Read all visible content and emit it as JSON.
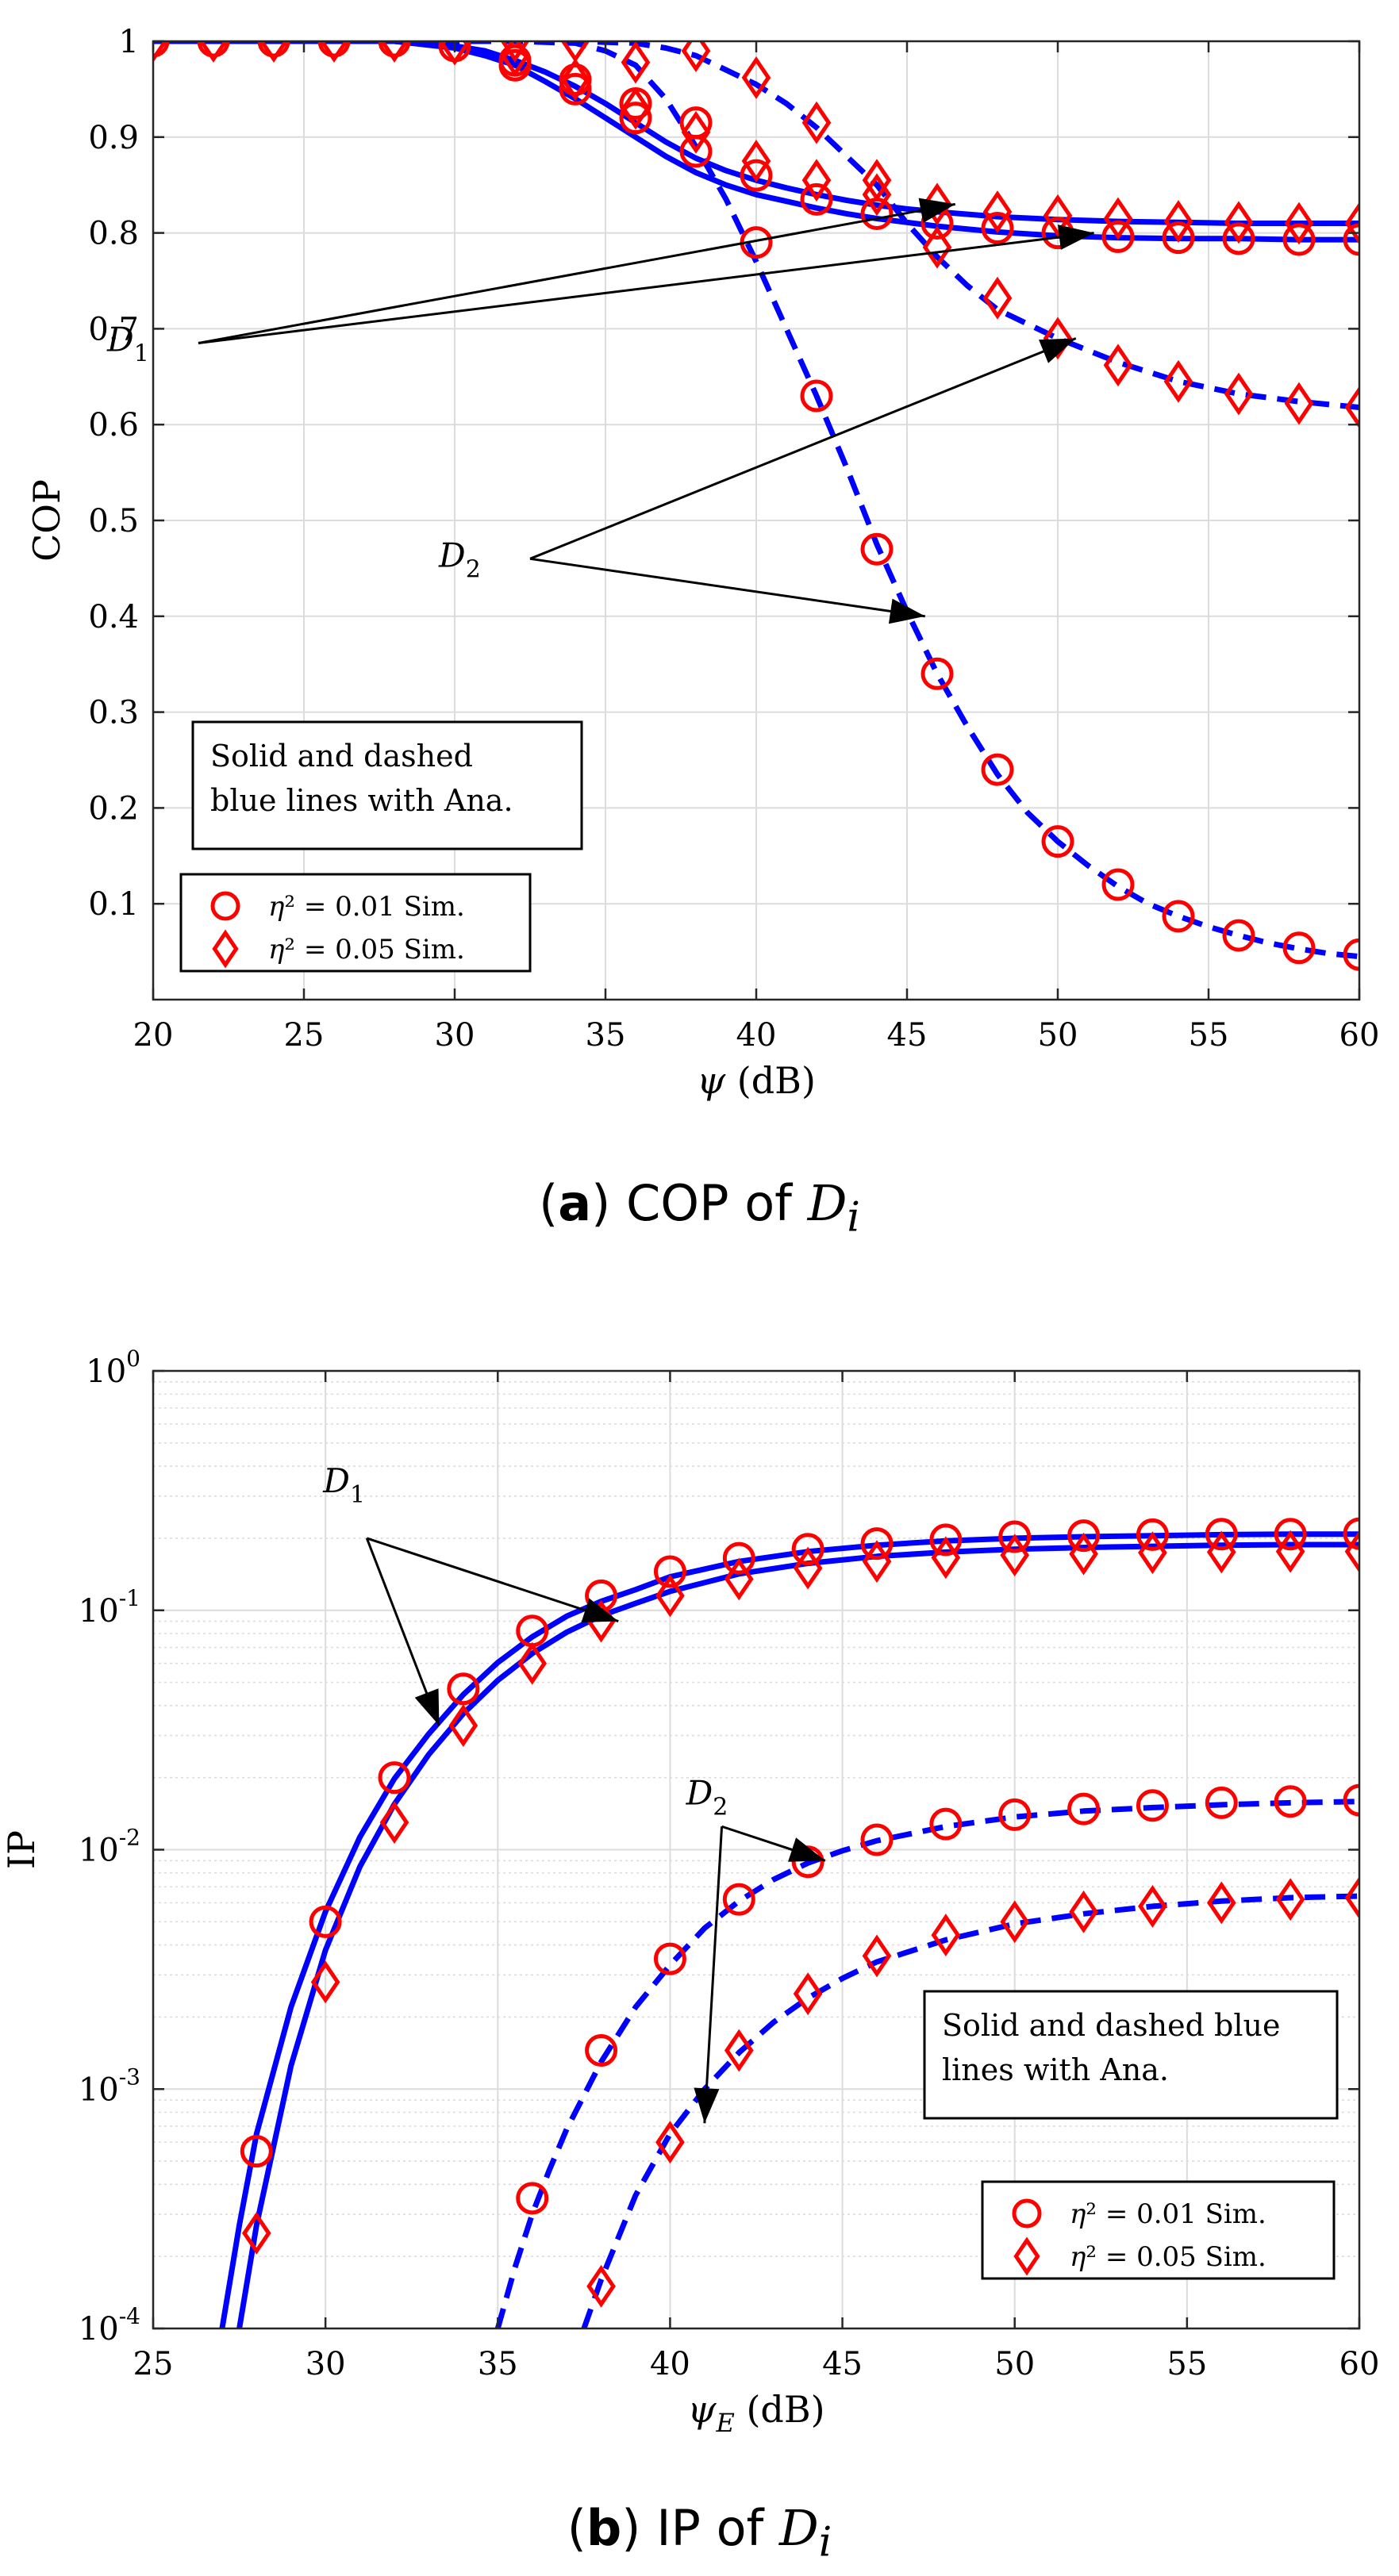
{
  "chart_data": [
    {
      "type": "line",
      "panel": "(a)",
      "caption": {
        "label": "a",
        "text": "COP of",
        "var": "D",
        "sub": "i"
      },
      "xlabel": "ψ (dB)",
      "ylabel": "COP",
      "xlim": [
        20,
        60
      ],
      "ylim": [
        0,
        1
      ],
      "yscale": "linear",
      "xticks": [
        20,
        25,
        30,
        35,
        40,
        45,
        50,
        55,
        60
      ],
      "yticks": [
        0.1,
        0.2,
        0.3,
        0.4,
        0.5,
        0.6,
        0.7,
        0.8,
        0.9,
        1
      ],
      "ytick_labels": [
        "0.1",
        "0.2",
        "0.3",
        "0.4",
        "0.5",
        "0.6",
        "0.7",
        "0.8",
        "0.9",
        "1"
      ],
      "grid": true,
      "legend_position": "bottom-left",
      "legend": [
        {
          "label": "η² = 0.01 Sim.",
          "marker": "circle",
          "color": "#ff0000"
        },
        {
          "label": "η² = 0.05 Sim.",
          "marker": "diamond",
          "color": "#ff0000"
        }
      ],
      "note_lines": [
        "Solid and dashed",
        "blue lines with Ana."
      ],
      "annotations": [
        {
          "label": "D",
          "sub": "1",
          "at": [
            21.5,
            0.685
          ],
          "targets": [
            [
              46.6,
              0.83
            ],
            [
              51.2,
              0.8
            ]
          ]
        },
        {
          "label": "D",
          "sub": "2",
          "at": [
            32.5,
            0.46
          ],
          "targets": [
            [
              50.6,
              0.69
            ],
            [
              45.6,
              0.4
            ]
          ]
        }
      ],
      "series": [
        {
          "name": "D1 η²=0.01 Ana.",
          "style": "solid",
          "color": "#0000ff",
          "x": [
            20,
            22,
            24,
            26,
            28,
            30,
            31,
            32,
            33,
            34,
            35,
            36,
            37,
            38,
            39,
            40,
            41,
            42,
            43,
            44,
            45,
            46,
            48,
            50,
            52,
            54,
            56,
            58,
            60
          ],
          "y": [
            1,
            1,
            1,
            1,
            1,
            0.993,
            0.985,
            0.975,
            0.958,
            0.94,
            0.92,
            0.9,
            0.88,
            0.863,
            0.85,
            0.84,
            0.833,
            0.826,
            0.82,
            0.815,
            0.811,
            0.807,
            0.801,
            0.797,
            0.795,
            0.794,
            0.794,
            0.793,
            0.793
          ]
        },
        {
          "name": "D1 η²=0.05 Ana.",
          "style": "solid",
          "color": "#0000ff",
          "x": [
            20,
            22,
            24,
            26,
            28,
            30,
            31,
            32,
            33,
            34,
            35,
            36,
            37,
            38,
            39,
            40,
            41,
            42,
            43,
            44,
            45,
            46,
            48,
            50,
            52,
            54,
            56,
            58,
            60
          ],
          "y": [
            1,
            1,
            1,
            1,
            1,
            0.995,
            0.99,
            0.98,
            0.968,
            0.953,
            0.935,
            0.915,
            0.895,
            0.878,
            0.865,
            0.855,
            0.847,
            0.84,
            0.834,
            0.829,
            0.825,
            0.822,
            0.817,
            0.814,
            0.812,
            0.811,
            0.81,
            0.81,
            0.81
          ]
        },
        {
          "name": "D2 η²=0.01 Ana.",
          "style": "dashed",
          "color": "#0000ff",
          "x": [
            20,
            22,
            24,
            26,
            28,
            30,
            32,
            34,
            35,
            36,
            37,
            38,
            39,
            40,
            41,
            42,
            43,
            44,
            45,
            46,
            47,
            48,
            49,
            50,
            51,
            52,
            53,
            54,
            55,
            56,
            57,
            58,
            59,
            60
          ],
          "y": [
            1,
            1,
            1,
            1,
            1,
            1,
            1,
            0.998,
            0.99,
            0.975,
            0.94,
            0.89,
            0.835,
            0.77,
            0.7,
            0.63,
            0.555,
            0.475,
            0.405,
            0.34,
            0.285,
            0.235,
            0.195,
            0.165,
            0.14,
            0.118,
            0.1,
            0.087,
            0.076,
            0.067,
            0.059,
            0.053,
            0.048,
            0.045
          ]
        },
        {
          "name": "D2 η²=0.05 Ana.",
          "style": "dashed",
          "color": "#0000ff",
          "x": [
            20,
            22,
            24,
            26,
            28,
            30,
            32,
            34,
            36,
            37,
            38,
            39,
            40,
            41,
            42,
            43,
            44,
            45,
            46,
            47,
            48,
            49,
            50,
            52,
            54,
            56,
            58,
            60
          ],
          "y": [
            1,
            1,
            1,
            1,
            1,
            1,
            1,
            1,
            0.998,
            0.993,
            0.985,
            0.97,
            0.955,
            0.935,
            0.91,
            0.88,
            0.85,
            0.81,
            0.775,
            0.745,
            0.72,
            0.705,
            0.69,
            0.665,
            0.645,
            0.632,
            0.624,
            0.618
          ]
        },
        {
          "name": "D1 η²=0.01 Sim.",
          "marker": "circle",
          "x": [
            20,
            22,
            24,
            26,
            28,
            30,
            32,
            34,
            36,
            38,
            40,
            42,
            44,
            46,
            48,
            50,
            52,
            54,
            56,
            58,
            60
          ],
          "y": [
            1,
            1,
            1,
            1,
            1,
            0.995,
            0.975,
            0.95,
            0.92,
            0.885,
            0.86,
            0.835,
            0.82,
            0.81,
            0.805,
            0.8,
            0.796,
            0.795,
            0.794,
            0.793,
            0.793
          ]
        },
        {
          "name": "D1 η²=0.05 Sim.",
          "marker": "diamond",
          "x": [
            20,
            22,
            24,
            26,
            28,
            30,
            32,
            34,
            36,
            38,
            40,
            42,
            44,
            46,
            48,
            50,
            52,
            54,
            56,
            58,
            60
          ],
          "y": [
            1,
            1,
            1,
            1,
            1,
            0.997,
            0.985,
            0.96,
            0.93,
            0.905,
            0.875,
            0.855,
            0.84,
            0.83,
            0.822,
            0.818,
            0.815,
            0.812,
            0.811,
            0.81,
            0.81
          ]
        },
        {
          "name": "D2 η²=0.01 Sim.",
          "marker": "circle",
          "x": [
            32,
            34,
            36,
            38,
            40,
            42,
            44,
            46,
            48,
            50,
            52,
            54,
            56,
            58,
            60
          ],
          "y": [
            0.98,
            0.96,
            0.935,
            0.915,
            0.79,
            0.63,
            0.47,
            0.34,
            0.24,
            0.165,
            0.12,
            0.087,
            0.067,
            0.054,
            0.047
          ]
        },
        {
          "name": "D2 η²=0.05 Sim.",
          "marker": "diamond",
          "x": [
            32,
            34,
            36,
            38,
            40,
            42,
            44,
            46,
            48,
            50,
            52,
            54,
            56,
            58,
            60
          ],
          "y": [
            1,
            1,
            0.978,
            0.99,
            0.962,
            0.915,
            0.855,
            0.785,
            0.732,
            0.69,
            0.662,
            0.645,
            0.632,
            0.622,
            0.618
          ]
        }
      ]
    },
    {
      "type": "line",
      "panel": "(b)",
      "caption": {
        "label": "b",
        "text": "IP of",
        "var": "D",
        "sub": "i"
      },
      "xlabel": "ψE (dB)",
      "ylabel": "IP",
      "xlim": [
        25,
        60
      ],
      "ylim": [
        0.0001,
        1
      ],
      "yscale": "log",
      "xticks": [
        25,
        30,
        35,
        40,
        45,
        50,
        55,
        60
      ],
      "ytick_exponents": [
        -4,
        -3,
        -2,
        -1,
        0
      ],
      "grid": true,
      "legend_position": "bottom-right",
      "legend": [
        {
          "label": "η² = 0.01 Sim.",
          "marker": "circle",
          "color": "#ff0000"
        },
        {
          "label": "η² = 0.05 Sim.",
          "marker": "diamond",
          "color": "#ff0000"
        }
      ],
      "note_lines": [
        "Solid and dashed blue",
        "lines with Ana."
      ],
      "annotations": [
        {
          "label": "D",
          "sub": "1",
          "at": [
            31.2,
            0.2
          ],
          "targets": [
            [
              38.5,
              0.09
            ],
            [
              33.3,
              0.033
            ]
          ]
        },
        {
          "label": "D",
          "sub": "2",
          "at": [
            41.5,
            0.0125
          ],
          "targets": [
            [
              44.5,
              0.009
            ],
            [
              41,
              0.00072
            ]
          ]
        }
      ],
      "series": [
        {
          "name": "D1 η²=0.01 Ana.",
          "style": "solid",
          "color": "#0000ff",
          "x": [
            27,
            27.5,
            28,
            29,
            30,
            31,
            32,
            33,
            34,
            35,
            36,
            37,
            38,
            39,
            40,
            42,
            44,
            46,
            48,
            50,
            52,
            54,
            56,
            58,
            60
          ],
          "y": [
            0.0001,
            0.00027,
            0.00065,
            0.0022,
            0.0055,
            0.0113,
            0.0198,
            0.0305,
            0.0445,
            0.0605,
            0.0775,
            0.0945,
            0.109,
            0.122,
            0.138,
            0.16,
            0.176,
            0.187,
            0.195,
            0.2,
            0.203,
            0.205,
            0.207,
            0.208,
            0.208
          ]
        },
        {
          "name": "D1 η²=0.05 Ana.",
          "style": "solid",
          "color": "#0000ff",
          "x": [
            27.5,
            28,
            29,
            30,
            31,
            32,
            33,
            34,
            35,
            36,
            37,
            38,
            39,
            40,
            42,
            44,
            46,
            48,
            50,
            52,
            54,
            56,
            58,
            60
          ],
          "y": [
            0.0001,
            0.00027,
            0.00125,
            0.0038,
            0.0085,
            0.0155,
            0.025,
            0.037,
            0.051,
            0.066,
            0.081,
            0.095,
            0.107,
            0.12,
            0.142,
            0.157,
            0.168,
            0.175,
            0.18,
            0.183,
            0.185,
            0.187,
            0.188,
            0.188
          ]
        },
        {
          "name": "D2 η²=0.01 Ana.",
          "style": "dashed",
          "color": "#0000ff",
          "x": [
            35,
            35.5,
            36,
            36.5,
            37,
            38,
            39,
            40,
            41,
            42,
            43,
            44,
            45,
            46,
            48,
            50,
            52,
            54,
            56,
            58,
            60
          ],
          "y": [
            0.0001,
            0.00018,
            0.0003,
            0.00046,
            0.00068,
            0.0013,
            0.0022,
            0.0033,
            0.0047,
            0.0061,
            0.0075,
            0.0088,
            0.0099,
            0.0109,
            0.0125,
            0.0137,
            0.0145,
            0.015,
            0.0154,
            0.0157,
            0.0159
          ]
        },
        {
          "name": "D2 η²=0.05 Ana.",
          "style": "dashed",
          "color": "#0000ff",
          "x": [
            37.5,
            38,
            39,
            40,
            41,
            42,
            43,
            44,
            45,
            46,
            48,
            50,
            52,
            54,
            56,
            58,
            60
          ],
          "y": [
            0.0001,
            0.00016,
            0.00036,
            0.00065,
            0.001,
            0.00142,
            0.0019,
            0.0024,
            0.0029,
            0.0034,
            0.0042,
            0.0049,
            0.0054,
            0.0058,
            0.0061,
            0.0063,
            0.0064
          ]
        },
        {
          "name": "D1 η²=0.01 Sim.",
          "marker": "circle",
          "x": [
            28,
            30,
            32,
            34,
            36,
            38,
            40,
            42,
            44,
            46,
            48,
            50,
            52,
            54,
            56,
            58,
            60
          ],
          "y": [
            0.00055,
            0.005,
            0.02,
            0.047,
            0.082,
            0.115,
            0.145,
            0.165,
            0.18,
            0.19,
            0.197,
            0.203,
            0.205,
            0.207,
            0.208,
            0.208,
            0.209
          ]
        },
        {
          "name": "D1 η²=0.05 Sim.",
          "marker": "diamond",
          "x": [
            28,
            30,
            32,
            34,
            36,
            38,
            40,
            42,
            44,
            46,
            48,
            50,
            52,
            54,
            56,
            58,
            60
          ],
          "y": [
            0.00025,
            0.0028,
            0.013,
            0.033,
            0.06,
            0.09,
            0.115,
            0.135,
            0.15,
            0.16,
            0.166,
            0.17,
            0.172,
            0.174,
            0.175,
            0.176,
            0.176
          ]
        },
        {
          "name": "D2 η²=0.01 Sim.",
          "marker": "circle",
          "x": [
            36,
            38,
            40,
            42,
            44,
            46,
            48,
            50,
            52,
            54,
            56,
            58,
            60
          ],
          "y": [
            0.00035,
            0.00145,
            0.0035,
            0.0062,
            0.0089,
            0.011,
            0.0128,
            0.014,
            0.0148,
            0.0153,
            0.0157,
            0.0159,
            0.0161
          ]
        },
        {
          "name": "D2 η²=0.05 Sim.",
          "marker": "diamond",
          "x": [
            38,
            40,
            42,
            44,
            46,
            48,
            50,
            52,
            54,
            56,
            58,
            60
          ],
          "y": [
            0.00015,
            0.0006,
            0.00145,
            0.0025,
            0.0036,
            0.0044,
            0.005,
            0.0055,
            0.0058,
            0.006,
            0.0062,
            0.0063
          ]
        }
      ]
    }
  ]
}
